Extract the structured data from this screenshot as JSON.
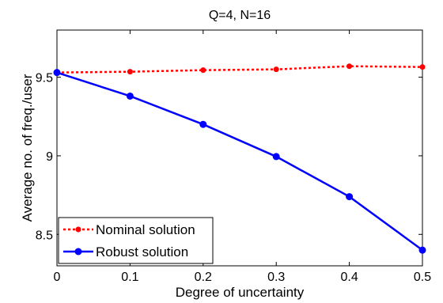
{
  "chart_data": {
    "type": "line",
    "title": "Q=4, N=16",
    "xlabel": "Degree of uncertainty",
    "ylabel": "Average no. of freq./user",
    "xlim": [
      0,
      0.5
    ],
    "ylim": [
      8.3,
      9.8
    ],
    "xticks": [
      0,
      0.1,
      0.2,
      0.3,
      0.4,
      0.5
    ],
    "xtick_labels": [
      "0",
      "0.1",
      "0.2",
      "0.3",
      "0.4",
      "0.5"
    ],
    "yticks": [
      8.5,
      9,
      9.5
    ],
    "ytick_labels": [
      "8.5",
      "9",
      "9.5"
    ],
    "grid": false,
    "legend_position": "bottom-left",
    "x": [
      0,
      0.1,
      0.2,
      0.3,
      0.4,
      0.5
    ],
    "series": [
      {
        "name": "Nominal solution",
        "values": [
          9.53,
          9.535,
          9.545,
          9.55,
          9.57,
          9.565
        ],
        "color": "#ff0000",
        "line_style": "dotted",
        "marker": "dot"
      },
      {
        "name": "Robust solution",
        "values": [
          9.53,
          9.38,
          9.2,
          8.995,
          8.74,
          8.4
        ],
        "color": "#0000ff",
        "line_style": "solid",
        "marker": "circle"
      }
    ]
  }
}
